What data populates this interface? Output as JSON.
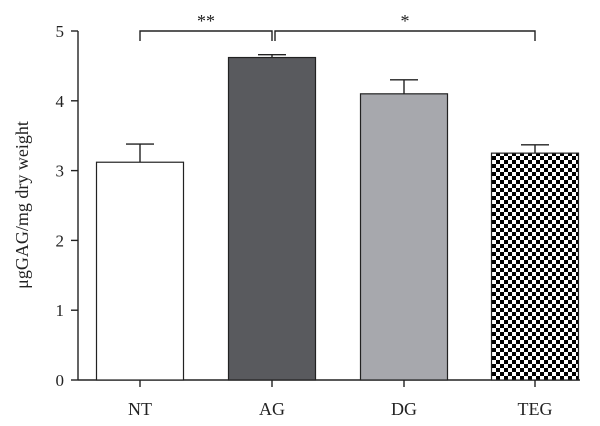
{
  "chart_data": {
    "type": "bar",
    "title": "",
    "xlabel": "",
    "ylabel": "μgGAG/mg dry weight",
    "ylim": [
      0,
      5
    ],
    "yticks": [
      0,
      1,
      2,
      3,
      4,
      5
    ],
    "grid": false,
    "categories": [
      "NT",
      "AG",
      "DG",
      "TEG"
    ],
    "values": [
      3.12,
      4.62,
      4.1,
      3.25
    ],
    "errors": [
      0.26,
      0.04,
      0.2,
      0.12
    ],
    "fills": [
      "white",
      "dark-gray",
      "light-gray",
      "checkerboard"
    ],
    "colors": {
      "NT": "#ffffff",
      "AG": "#595a5e",
      "DG": "#a7a8ad",
      "TEG": "#000000"
    },
    "annotations": [
      {
        "from": "NT",
        "to": "AG",
        "label": "**"
      },
      {
        "from": "AG",
        "to": "TEG",
        "label": "*"
      }
    ]
  }
}
